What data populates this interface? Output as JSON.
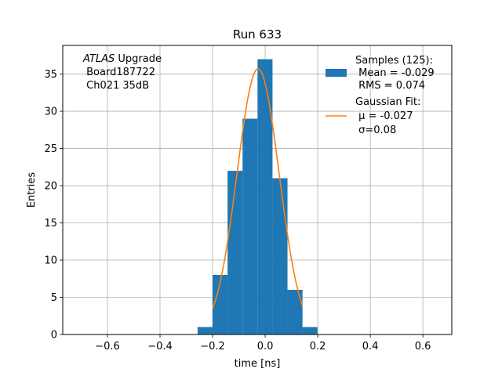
{
  "chart_data": {
    "type": "bar",
    "title": "Run 633",
    "xlabel": "time [ns]",
    "ylabel": "Entries",
    "xlim": [
      -0.77,
      0.71
    ],
    "ylim": [
      0,
      38.85
    ],
    "xticks": [
      -0.6,
      -0.4,
      -0.2,
      0.0,
      0.2,
      0.4,
      0.6
    ],
    "xtick_labels": [
      "−0.6",
      "−0.4",
      "−0.2",
      "0.0",
      "0.2",
      "0.4",
      "0.6"
    ],
    "yticks": [
      0,
      5,
      10,
      15,
      20,
      25,
      30,
      35
    ],
    "ytick_labels": [
      "0",
      "5",
      "10",
      "15",
      "20",
      "25",
      "30",
      "35"
    ],
    "grid": true,
    "annotation": {
      "italic": "ATLAS",
      "rest": " Upgrade",
      "line2": " Board187722",
      "line3": " Ch021 35dB"
    },
    "histogram": {
      "bin_edges": [
        -0.257,
        -0.2,
        -0.143,
        -0.086,
        -0.029,
        0.028,
        0.085,
        0.142,
        0.199
      ],
      "counts": [
        1,
        8,
        22,
        29,
        37,
        21,
        6,
        1
      ],
      "color": "#1f77b4"
    },
    "fit": {
      "mu": -0.027,
      "sigma": 0.08,
      "amplitude": 35.7,
      "x_range": [
        -0.2,
        0.142
      ],
      "color": "#ff7f0e"
    },
    "legend": {
      "position": "upper right",
      "samples_lines": [
        "Samples (125):",
        " Mean = -0.029",
        " RMS = 0.074"
      ],
      "fit_lines": [
        "Gaussian Fit:",
        " μ = -0.027",
        " σ=0.08"
      ]
    }
  }
}
